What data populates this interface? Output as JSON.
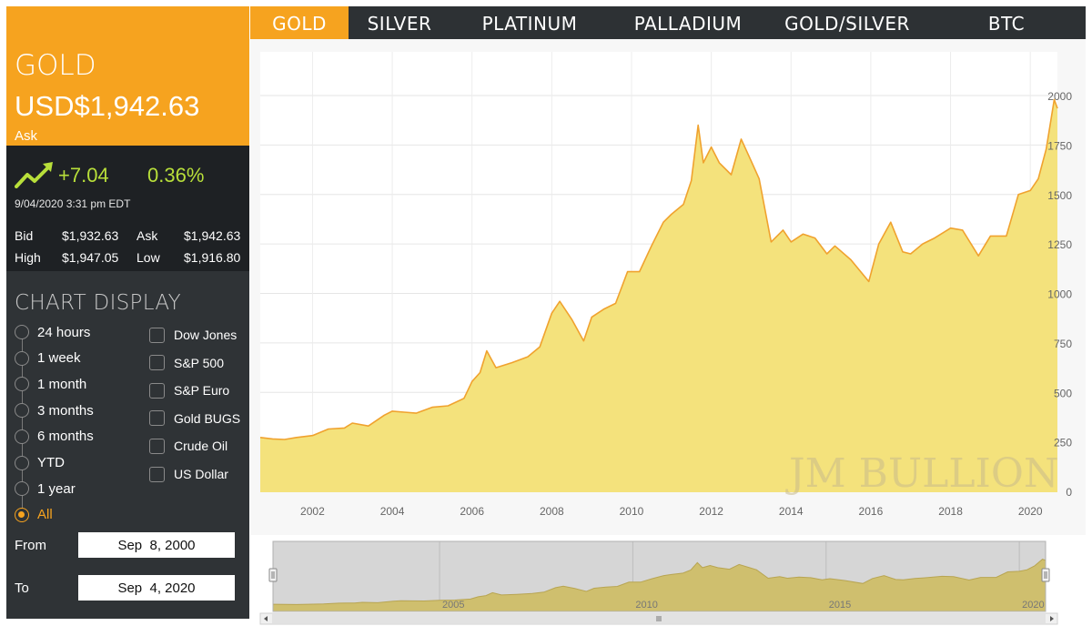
{
  "tabs": [
    {
      "label": "GOLD",
      "active": true,
      "width": 108
    },
    {
      "label": "SILVER",
      "active": false,
      "width": 112
    },
    {
      "label": "PLATINUM",
      "active": false,
      "width": 174
    },
    {
      "label": "PALLADIUM",
      "active": false,
      "width": 174
    },
    {
      "label": "GOLD/SILVER",
      "active": false,
      "width": 176
    },
    {
      "label": "BTC",
      "active": false,
      "width": 174
    }
  ],
  "quote": {
    "metal": "GOLD",
    "price": "USD$1,942.63",
    "price_label": "Ask",
    "change_abs": "+7.04",
    "change_pct": "0.36%",
    "timestamp": "9/04/2020 3:31 pm EDT",
    "bid_label": "Bid",
    "bid": "$1,932.63",
    "ask_label": "Ask",
    "ask": "$1,942.63",
    "high_label": "High",
    "high": "$1,947.05",
    "low_label": "Low",
    "low": "$1,916.80",
    "trend_icon": "trend-up-arrow-icon"
  },
  "chart_display": {
    "title": "CHART DISPLAY",
    "ranges": [
      {
        "label": "24 hours",
        "selected": false
      },
      {
        "label": "1 week",
        "selected": false
      },
      {
        "label": "1 month",
        "selected": false
      },
      {
        "label": "3 months",
        "selected": false
      },
      {
        "label": "6 months",
        "selected": false
      },
      {
        "label": "YTD",
        "selected": false
      },
      {
        "label": "1 year",
        "selected": false
      },
      {
        "label": "All",
        "selected": true
      }
    ],
    "overlays": [
      {
        "label": "Dow Jones",
        "checked": false
      },
      {
        "label": "S&P 500",
        "checked": false
      },
      {
        "label": "S&P Euro",
        "checked": false
      },
      {
        "label": "Gold BUGS",
        "checked": false
      },
      {
        "label": "Crude Oil",
        "checked": false
      },
      {
        "label": "US Dollar",
        "checked": false
      }
    ],
    "from_label": "From",
    "from_value": "Sep  8, 2000",
    "to_label": "To",
    "to_value": "Sep  4, 2020"
  },
  "colors": {
    "accent": "#f6a31f",
    "panel": "#2f3336",
    "panel_dark": "#1e2124",
    "positive": "#b8df3a",
    "area_fill": "#f4e27c",
    "area_line": "#f0a22e",
    "nav_fill": "#cfbf6e"
  },
  "watermark": "JM BULLION",
  "chart_data": {
    "type": "area",
    "x_start": 2000.69,
    "x_end": 2020.68,
    "x": [
      2000.69,
      2001.0,
      2001.3,
      2001.6,
      2002.0,
      2002.4,
      2002.8,
      2003.0,
      2003.4,
      2003.8,
      2004.0,
      2004.3,
      2004.6,
      2005.0,
      2005.4,
      2005.8,
      2006.0,
      2006.2,
      2006.37,
      2006.6,
      2007.0,
      2007.4,
      2007.7,
      2008.0,
      2008.2,
      2008.5,
      2008.8,
      2009.0,
      2009.3,
      2009.6,
      2009.9,
      2010.2,
      2010.5,
      2010.8,
      2011.0,
      2011.3,
      2011.5,
      2011.67,
      2011.8,
      2012.0,
      2012.2,
      2012.5,
      2012.75,
      2013.0,
      2013.2,
      2013.5,
      2013.8,
      2014.0,
      2014.3,
      2014.6,
      2014.9,
      2015.1,
      2015.5,
      2015.95,
      2016.2,
      2016.5,
      2016.8,
      2017.0,
      2017.3,
      2017.6,
      2018.0,
      2018.3,
      2018.7,
      2019.0,
      2019.4,
      2019.7,
      2020.0,
      2020.2,
      2020.4,
      2020.6,
      2020.68
    ],
    "values": [
      272,
      265,
      262,
      272,
      282,
      315,
      320,
      345,
      330,
      385,
      405,
      400,
      395,
      425,
      432,
      470,
      555,
      600,
      710,
      625,
      650,
      680,
      730,
      900,
      960,
      870,
      760,
      880,
      920,
      950,
      1110,
      1110,
      1240,
      1360,
      1400,
      1450,
      1570,
      1850,
      1660,
      1740,
      1660,
      1600,
      1780,
      1670,
      1580,
      1260,
      1320,
      1260,
      1300,
      1280,
      1200,
      1240,
      1170,
      1060,
      1250,
      1360,
      1210,
      1200,
      1250,
      1280,
      1330,
      1320,
      1190,
      1290,
      1290,
      1500,
      1520,
      1580,
      1730,
      1980,
      1935
    ],
    "title": "",
    "xlabel": "",
    "ylabel": "",
    "xlim": [
      2000.69,
      2020.68
    ],
    "ylim": [
      0,
      2100
    ],
    "x_ticks": [
      "2002",
      "2004",
      "2006",
      "2008",
      "2010",
      "2012",
      "2014",
      "2016",
      "2018",
      "2020"
    ],
    "y_ticks": [
      0,
      250,
      500,
      750,
      1000,
      1250,
      1500,
      1750,
      2000
    ],
    "grid": true,
    "legend": "none",
    "navigator_ticks": [
      "2005",
      "2010",
      "2015",
      "2020"
    ]
  }
}
